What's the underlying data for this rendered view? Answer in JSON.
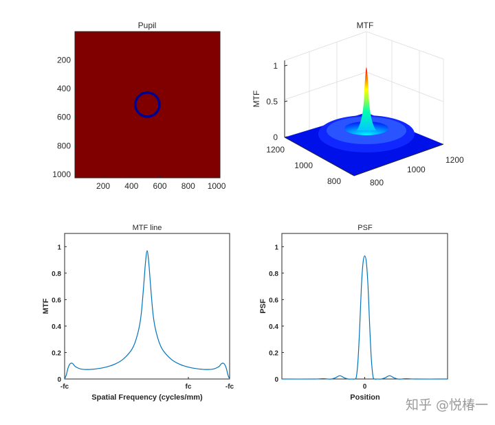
{
  "chart_data": [
    {
      "type": "heatmap",
      "title": "Pupil",
      "xticks": [
        "200",
        "400",
        "600",
        "800",
        "1000"
      ],
      "yticks": [
        "200",
        "400",
        "600",
        "800",
        "1000"
      ],
      "xlim": [
        1,
        1024
      ],
      "ylim": [
        1,
        1024
      ],
      "features": [
        {
          "kind": "ring",
          "cx": 512,
          "cy": 512,
          "r": 85,
          "value": "low"
        }
      ],
      "colors": {
        "background": "#800000",
        "ring": "#00008f"
      }
    },
    {
      "type": "surface",
      "title": "MTF",
      "zlabel": "MTF",
      "zticks": [
        "0",
        "0.5",
        "1"
      ],
      "xticks": [
        "800",
        "1000",
        "1200"
      ],
      "yticks": [
        "800",
        "1000",
        "1200"
      ],
      "colors": {
        "base": "#0018ff",
        "peak": "#ff0000"
      }
    },
    {
      "type": "line",
      "title": "MTF line",
      "xlabel": "Spatial Frequency (cycles/mm)",
      "ylabel": "MTF",
      "xtick_labels": [
        "-fc",
        "fc",
        "-fc"
      ],
      "xtick_positions": [
        -1,
        0.5,
        1
      ],
      "yticks": [
        "0",
        "0.2",
        "0.4",
        "0.6",
        "0.8",
        "1"
      ],
      "xlim": [
        -1,
        1
      ],
      "ylim": [
        0,
        1.1
      ],
      "x": [
        -1.0,
        -0.98,
        -0.96,
        -0.94,
        -0.92,
        -0.9,
        -0.88,
        -0.86,
        -0.8,
        -0.7,
        -0.6,
        -0.5,
        -0.4,
        -0.3,
        -0.2,
        -0.15,
        -0.1,
        -0.07,
        -0.04,
        -0.02,
        0.0,
        0.02,
        0.04,
        0.07,
        0.1,
        0.15,
        0.2,
        0.3,
        0.4,
        0.5,
        0.6,
        0.7,
        0.8,
        0.86,
        0.88,
        0.9,
        0.92,
        0.94,
        0.96,
        0.98,
        1.0
      ],
      "y": [
        0.0,
        0.03,
        0.08,
        0.11,
        0.12,
        0.115,
        0.1,
        0.09,
        0.075,
        0.072,
        0.078,
        0.09,
        0.11,
        0.145,
        0.21,
        0.27,
        0.38,
        0.5,
        0.72,
        0.88,
        0.97,
        0.88,
        0.72,
        0.5,
        0.38,
        0.27,
        0.21,
        0.145,
        0.11,
        0.09,
        0.078,
        0.072,
        0.075,
        0.09,
        0.1,
        0.115,
        0.12,
        0.11,
        0.08,
        0.03,
        0.0
      ],
      "color": "#0072bd"
    },
    {
      "type": "line",
      "title": "PSF",
      "xlabel": "Position",
      "ylabel": "PSF",
      "xtick_labels": [
        "0"
      ],
      "xtick_positions": [
        0
      ],
      "yticks": [
        "0",
        "0.2",
        "0.4",
        "0.6",
        "0.8",
        "1"
      ],
      "xlim": [
        -1,
        1
      ],
      "ylim": [
        0,
        1.1
      ],
      "x": [
        -1.0,
        -0.6,
        -0.5,
        -0.45,
        -0.4,
        -0.35,
        -0.3,
        -0.25,
        -0.2,
        -0.15,
        -0.12,
        -0.1,
        -0.08,
        -0.06,
        -0.04,
        -0.02,
        0.0,
        0.02,
        0.04,
        0.06,
        0.08,
        0.1,
        0.12,
        0.15,
        0.2,
        0.25,
        0.3,
        0.35,
        0.4,
        0.45,
        0.5,
        0.6,
        1.0
      ],
      "y": [
        0.0,
        0.0,
        0.003,
        0.0,
        0.0,
        0.01,
        0.025,
        0.01,
        0.0,
        0.0,
        0.0,
        0.02,
        0.15,
        0.4,
        0.7,
        0.88,
        0.93,
        0.88,
        0.7,
        0.4,
        0.15,
        0.02,
        0.0,
        0.0,
        0.0,
        0.01,
        0.025,
        0.01,
        0.0,
        0.0,
        0.003,
        0.0,
        0.0
      ],
      "color": "#0072bd"
    }
  ],
  "watermark": "知乎 @悦椿一"
}
